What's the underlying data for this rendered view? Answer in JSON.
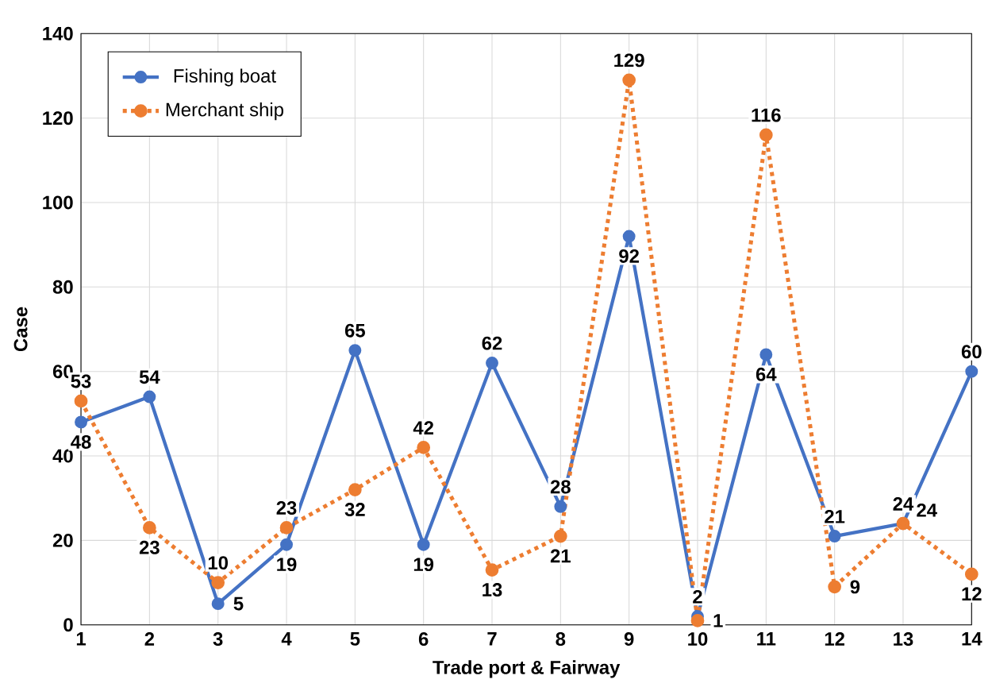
{
  "chart_data": {
    "type": "line",
    "xlabel": "Trade port  & Fairway",
    "ylabel": "Case",
    "categories": [
      "1",
      "2",
      "3",
      "4",
      "5",
      "6",
      "7",
      "8",
      "9",
      "10",
      "11",
      "12",
      "13",
      "14"
    ],
    "series": [
      {
        "name": "Fishing boat",
        "color": "#4472c4",
        "line_style": "solid",
        "values": [
          48,
          54,
          5,
          19,
          65,
          19,
          62,
          28,
          92,
          2,
          64,
          21,
          24,
          60
        ]
      },
      {
        "name": "Merchant ship",
        "color": "#ed7d31",
        "line_style": "dotted",
        "values": [
          53,
          23,
          10,
          23,
          32,
          42,
          13,
          21,
          129,
          1,
          116,
          9,
          24,
          12
        ]
      }
    ],
    "ylim": [
      0,
      140
    ],
    "yticks": [
      0,
      20,
      40,
      60,
      80,
      100,
      120,
      140
    ],
    "grid": true,
    "legend": "top left",
    "marker": "circle",
    "data_labels": true
  }
}
